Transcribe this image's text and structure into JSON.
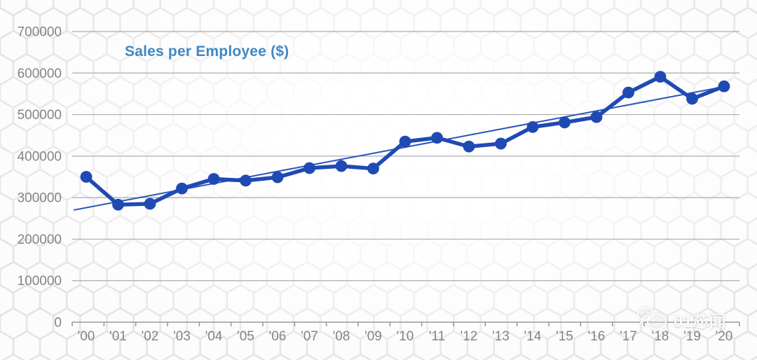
{
  "chart_data": {
    "type": "line",
    "title": "Sales per Employee ($)",
    "categories": [
      "'00",
      "'01",
      "'02",
      "'03",
      "'04",
      "'05",
      "'06",
      "'07",
      "'08",
      "'09",
      "'10",
      "'11",
      "'12",
      "'13",
      "'14",
      "'15",
      "'16",
      "'17",
      "'18",
      "'19",
      "'20"
    ],
    "values": [
      350000,
      283000,
      285000,
      322000,
      345000,
      341000,
      349000,
      371000,
      376000,
      370000,
      435000,
      444000,
      423000,
      430000,
      470000,
      481000,
      494000,
      553000,
      591000,
      538000,
      568000
    ],
    "trendline": {
      "start_value": 270000,
      "end_value": 567000
    },
    "ylim": [
      0,
      700000
    ],
    "ytick_interval": 100000,
    "ytick_labels": [
      "0",
      "100000",
      "200000",
      "300000",
      "400000",
      "500000",
      "600000",
      "700000"
    ],
    "grid": true,
    "legend": "none",
    "xlabel": "",
    "ylabel": "",
    "colors": {
      "series_line": "#1f4ab3",
      "trendline": "#2b55bb",
      "title": "#3f88c5",
      "axis_text": "#848484",
      "gridline": "#ababab",
      "axis_line": "#9a9a9a"
    }
  },
  "watermark": {
    "text": "01芯闻",
    "icon": "wechat-chat-bubbles-icon"
  }
}
